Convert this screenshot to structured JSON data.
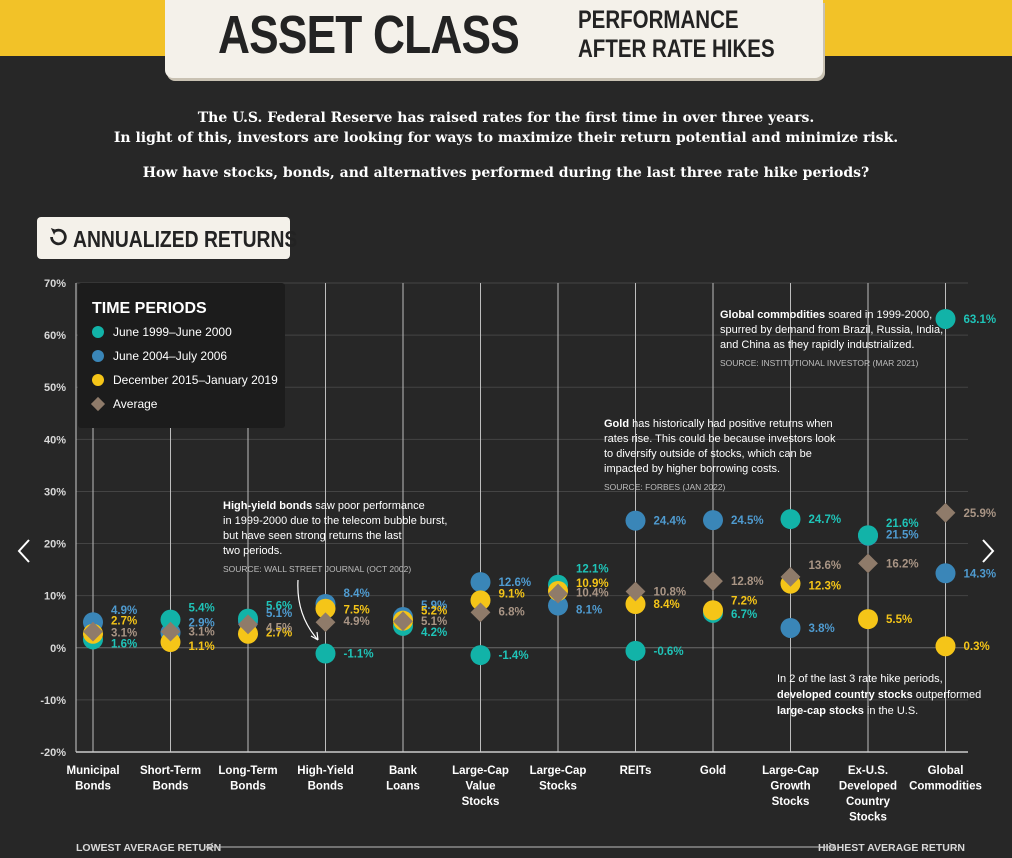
{
  "header": {
    "title": "ASSET CLASS",
    "subtitle_line1": "PERFORMANCE",
    "subtitle_line2": "AFTER RATE HIKES"
  },
  "intro": {
    "line1": "The U.S. Federal Reserve has raised rates for the first time in over three years.",
    "line2": "In light of this, investors are looking for ways to maximize their return potential and minimize risk.",
    "line3": "How have stocks, bonds, and alternatives performed during the last three rate hike periods?"
  },
  "badge": {
    "label": "ANNUALIZED RETURNS",
    "icon": "rotate-ccw-icon"
  },
  "legend": {
    "title": "TIME PERIODS",
    "items": [
      {
        "label": "June 1999–June 2000",
        "color": "#12b3a8",
        "shape": "circle"
      },
      {
        "label": "June 2004–July 2006",
        "color": "#3a86b8",
        "shape": "circle"
      },
      {
        "label": "December 2015–January 2019",
        "color": "#f5c518",
        "shape": "circle"
      },
      {
        "label": "Average",
        "color": "#8f7b6a",
        "shape": "diamond"
      }
    ]
  },
  "chart_data": {
    "type": "scatter",
    "ylim": [
      -20,
      70
    ],
    "yticks": [
      "-20%",
      "-10%",
      "0%",
      "10%",
      "20%",
      "30%",
      "40%",
      "50%",
      "60%",
      "70%"
    ],
    "yticks_values": [
      -20,
      -10,
      0,
      10,
      20,
      30,
      40,
      50,
      60,
      70
    ],
    "categories": [
      [
        "Municipal",
        "Bonds"
      ],
      [
        "Short-Term",
        "Bonds"
      ],
      [
        "Long-Term",
        "Bonds"
      ],
      [
        "High-Yield",
        "Bonds"
      ],
      [
        "Bank",
        "Loans"
      ],
      [
        "Large-Cap",
        "Value",
        "Stocks"
      ],
      [
        "Large-Cap",
        "Stocks"
      ],
      [
        "REITs"
      ],
      [
        "Gold"
      ],
      [
        "Large-Cap",
        "Growth",
        "Stocks"
      ],
      [
        "Ex-U.S.",
        "Developed",
        "Country",
        "Stocks"
      ],
      [
        "Global",
        "Commodities"
      ]
    ],
    "series": [
      {
        "name": "June 1999–June 2000",
        "values": [
          1.6,
          5.4,
          5.6,
          -1.1,
          4.2,
          -1.4,
          12.1,
          -0.6,
          6.7,
          24.7,
          21.6,
          63.1
        ]
      },
      {
        "name": "June 2004–July 2006",
        "values": [
          4.9,
          2.9,
          5.1,
          8.4,
          5.9,
          12.6,
          8.1,
          24.4,
          24.5,
          3.8,
          21.5,
          14.3
        ]
      },
      {
        "name": "December 2015–January 2019",
        "values": [
          2.7,
          1.1,
          2.7,
          7.5,
          5.2,
          9.1,
          10.9,
          8.4,
          7.2,
          12.3,
          5.5,
          0.3
        ]
      },
      {
        "name": "Average",
        "values": [
          3.1,
          3.1,
          4.5,
          4.9,
          5.1,
          6.8,
          10.4,
          10.8,
          12.8,
          13.6,
          16.2,
          25.9
        ]
      }
    ],
    "value_labels": [
      [
        "1.6%",
        "4.9%",
        "2.7%",
        "3.1%"
      ],
      [
        "5.4%",
        "2.9%",
        "1.1%",
        "3.1%"
      ],
      [
        "5.6%",
        "5.1%",
        "2.7%",
        "4.5%"
      ],
      [
        "-1.1%",
        "8.4%",
        "7.5%",
        "4.9%"
      ],
      [
        "4.2%",
        "5.9%",
        "5.2%",
        "5.1%"
      ],
      [
        "-1.4%",
        "12.6%",
        "9.1%",
        "6.8%"
      ],
      [
        "12.1%",
        "8.1%",
        "10.9%",
        "10.4%"
      ],
      [
        "-0.6%",
        "24.4%",
        "8.4%",
        "10.8%"
      ],
      [
        "6.7%",
        "24.5%",
        "7.2%",
        "12.8%"
      ],
      [
        "24.7%",
        "3.8%",
        "12.3%",
        "13.6%"
      ],
      [
        "21.6%",
        "21.5%",
        "5.5%",
        "16.2%"
      ],
      [
        "63.1%",
        "14.3%",
        "0.3%",
        "25.9%"
      ]
    ],
    "x_axis_left": "LOWEST AVERAGE RETURN",
    "x_axis_right": "HIGHEST AVERAGE RETURN",
    "grid": true
  },
  "annotations": {
    "high_yield": {
      "bold": "High-yield bonds",
      "rest": " saw poor performance",
      "lines": [
        "in 1999-2000 due to the telecom bubble burst,",
        "but have seen strong returns the last",
        "two periods."
      ],
      "source": "SOURCE: WALL STREET JOURNAL (OCT 2002)"
    },
    "gold": {
      "bold": "Gold",
      "rest": " has historically had positive returns when",
      "lines": [
        "rates rise. This could be because investors look",
        "to diversify outside of stocks, which can be",
        "impacted by higher borrowing costs."
      ],
      "source": "SOURCE: FORBES (JAN 2022)"
    },
    "commodities": {
      "bold": "Global commodities",
      "rest": " soared in 1999-2000,",
      "lines": [
        "spurred by demand from Brazil, Russia, India,",
        "and China as they rapidly industrialized."
      ],
      "source": "SOURCE: INSTITUTIONAL INVESTOR (MAR 2021)"
    },
    "developed": {
      "line1": "In 2 of the last 3 rate hike periods,",
      "bold2": "developed country stocks",
      "rest2": " outperformed",
      "bold3": "large-cap stocks",
      "rest3": " in the U.S."
    }
  }
}
